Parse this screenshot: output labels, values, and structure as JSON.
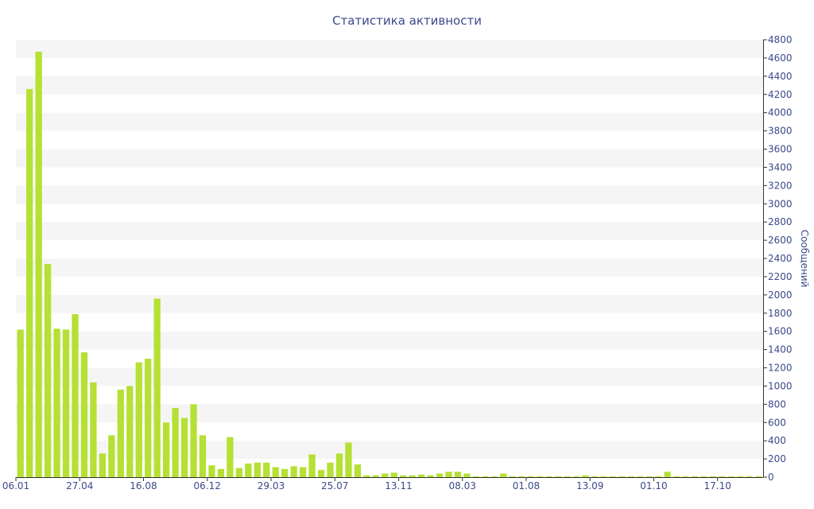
{
  "chart_data": {
    "type": "bar",
    "title": "Статистика активности",
    "xlabel": "",
    "ylabel": "Сообщений",
    "ylim": [
      0,
      4800
    ],
    "y_ticks": [
      0,
      200,
      400,
      600,
      800,
      1000,
      1200,
      1400,
      1600,
      1800,
      2000,
      2200,
      2400,
      2600,
      2800,
      3000,
      3200,
      3400,
      3600,
      3800,
      4000,
      4200,
      4400,
      4600,
      4800
    ],
    "y_axis_position": "right",
    "x_tick_labels": [
      {
        "label": "06.01",
        "index": 0
      },
      {
        "label": "27.04",
        "index": 7
      },
      {
        "label": "16.08",
        "index": 14
      },
      {
        "label": "06.12",
        "index": 21
      },
      {
        "label": "29.03",
        "index": 28
      },
      {
        "label": "25.07",
        "index": 35
      },
      {
        "label": "13.11",
        "index": 42
      },
      {
        "label": "08.03",
        "index": 49
      },
      {
        "label": "01.08",
        "index": 56
      },
      {
        "label": "13.09",
        "index": 63
      },
      {
        "label": "01.10",
        "index": 70
      },
      {
        "label": "17.10",
        "index": 77
      }
    ],
    "values": [
      1620,
      4260,
      4670,
      2340,
      1630,
      1620,
      1790,
      1370,
      1040,
      260,
      460,
      960,
      1000,
      1260,
      1300,
      1960,
      600,
      760,
      650,
      800,
      460,
      130,
      90,
      440,
      100,
      150,
      160,
      160,
      110,
      90,
      120,
      110,
      250,
      80,
      160,
      260,
      380,
      140,
      20,
      20,
      40,
      50,
      20,
      20,
      30,
      20,
      40,
      60,
      60,
      40,
      10,
      10,
      10,
      40,
      10,
      10,
      10,
      10,
      10,
      10,
      10,
      10,
      20,
      10,
      10,
      10,
      10,
      10,
      10,
      10,
      10,
      60,
      10,
      10,
      10,
      10,
      10,
      10,
      10,
      10,
      10,
      10
    ],
    "grid": true,
    "bar_color": "#b5e034",
    "band_color": "#f5f5f5",
    "text_color": "#3b4a8a"
  }
}
